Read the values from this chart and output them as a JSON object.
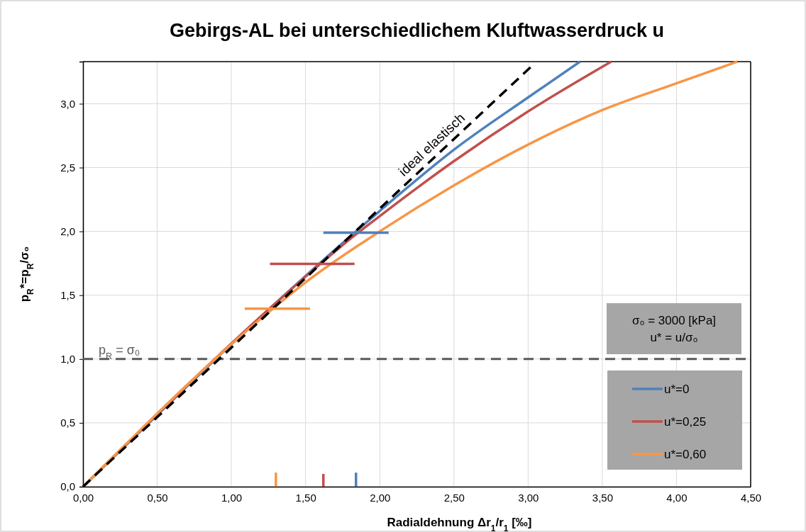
{
  "chart_data": {
    "type": "line",
    "title": "Gebirgs-AL bei unterschiedlichem Kluftwasserdruck u",
    "xlabel": "Radialdehnung  Δr$_{1}$/r$_{1}$ [‰]",
    "ylabel": "p$_{R}$*=p$_{R}$/σ₀",
    "xlim": [
      0,
      4.5
    ],
    "ylim": [
      0,
      3.33
    ],
    "xticks": [
      {
        "value": 0,
        "label": "0,00"
      },
      {
        "value": 0.5,
        "label": "0,50"
      },
      {
        "value": 1,
        "label": "1,00"
      },
      {
        "value": 1.5,
        "label": "1,50"
      },
      {
        "value": 2,
        "label": "2,00"
      },
      {
        "value": 2.5,
        "label": "2,50"
      },
      {
        "value": 3,
        "label": "3,00"
      },
      {
        "value": 3.5,
        "label": "3,50"
      },
      {
        "value": 4,
        "label": "4,00"
      },
      {
        "value": 4.5,
        "label": "4,50"
      }
    ],
    "yticks": [
      {
        "value": 0,
        "label": "0,0"
      },
      {
        "value": 0.5,
        "label": "0,5"
      },
      {
        "value": 1,
        "label": "1,0"
      },
      {
        "value": 1.5,
        "label": "1,5"
      },
      {
        "value": 2,
        "label": "2,0"
      },
      {
        "value": 2.5,
        "label": "2,5"
      },
      {
        "value": 3,
        "label": "3,0"
      }
    ],
    "grid": true,
    "legend": "bottom right",
    "line_style": "solid",
    "marker": "none",
    "series": [
      {
        "name": "u*=0",
        "color": "#4f81bd",
        "x": [
          0,
          1.84,
          2.0,
          2.5,
          3.0,
          3.35
        ],
        "values": [
          0,
          2.0,
          2.16,
          2.64,
          3.05,
          3.33
        ]
      },
      {
        "name": "u*=0,25",
        "color": "#c0504d",
        "x": [
          0,
          1.61,
          1.8,
          2.0,
          2.5,
          3.0,
          3.56
        ],
        "values": [
          0,
          1.755,
          1.94,
          2.12,
          2.55,
          2.94,
          3.33
        ]
      },
      {
        "name": "u*=0,60",
        "color": "#f79646",
        "x": [
          0,
          1.28,
          1.5,
          2.0,
          2.5,
          3.0,
          3.5,
          4.0,
          4.41
        ],
        "values": [
          0,
          1.395,
          1.6,
          2.0,
          2.36,
          2.68,
          2.95,
          3.16,
          3.33
        ]
      },
      {
        "color": "#000000",
        "line_style": "dashed",
        "x": [
          0,
          3.02
        ],
        "values": [
          0,
          3.29
        ]
      },
      {
        "color": "#4f81bd",
        "x": [
          1.62,
          2.06
        ],
        "values": [
          1.99,
          1.99
        ]
      },
      {
        "color": "#c0504d",
        "x": [
          1.26,
          1.83
        ],
        "values": [
          1.745,
          1.745
        ]
      },
      {
        "color": "#f79646",
        "x": [
          1.09,
          1.53
        ],
        "values": [
          1.395,
          1.395
        ]
      },
      {
        "color": "#f79646",
        "x": [
          1.3,
          1.3
        ],
        "values": [
          0,
          0.11
        ]
      },
      {
        "color": "#c0504d",
        "x": [
          1.62,
          1.62
        ],
        "values": [
          0,
          0.1
        ]
      },
      {
        "color": "#4f81bd",
        "x": [
          1.84,
          1.84
        ],
        "values": [
          0,
          0.11
        ]
      }
    ],
    "ref_lines": [
      {
        "axis": "y",
        "value": 1,
        "label": "p$_{R}$ = σ₀",
        "color": "#595959",
        "line_style": "dashed"
      }
    ],
    "annotations": [
      {
        "text": "ideal elastisch",
        "x": 2.4,
        "y": 2.62
      },
      "σ₀ = 3000 [kPa]",
      "u* = u/σ₀"
    ]
  }
}
